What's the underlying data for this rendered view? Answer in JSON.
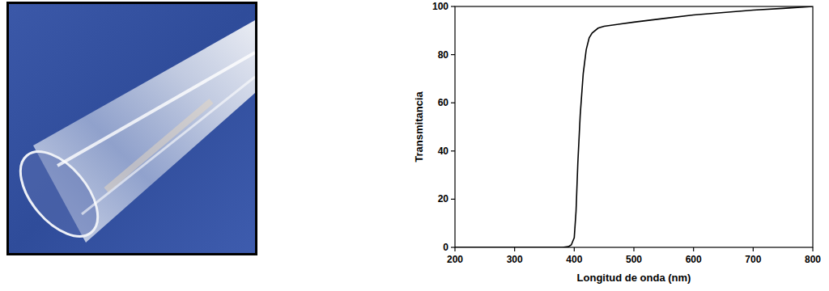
{
  "chart_data": {
    "type": "line",
    "x_label": "Longitud de onda (nm)",
    "y_label": "Transmitancia",
    "x": [
      200,
      300,
      380,
      390,
      395,
      400,
      403,
      406,
      410,
      415,
      420,
      425,
      430,
      440,
      450,
      500,
      550,
      600,
      650,
      700,
      750,
      800
    ],
    "values": [
      0,
      0,
      0,
      0.3,
      1,
      4,
      15,
      35,
      55,
      72,
      82,
      87,
      89,
      91,
      91.8,
      93.5,
      95,
      96.5,
      97.5,
      98.5,
      99.2,
      100
    ],
    "color": "#000000",
    "xlim": [
      200,
      800
    ],
    "xticks": [
      200,
      300,
      400,
      500,
      600,
      700,
      800
    ],
    "ylim": [
      0,
      100
    ],
    "yticks": [
      0,
      20,
      40,
      60,
      80,
      100
    ],
    "grid": false
  }
}
